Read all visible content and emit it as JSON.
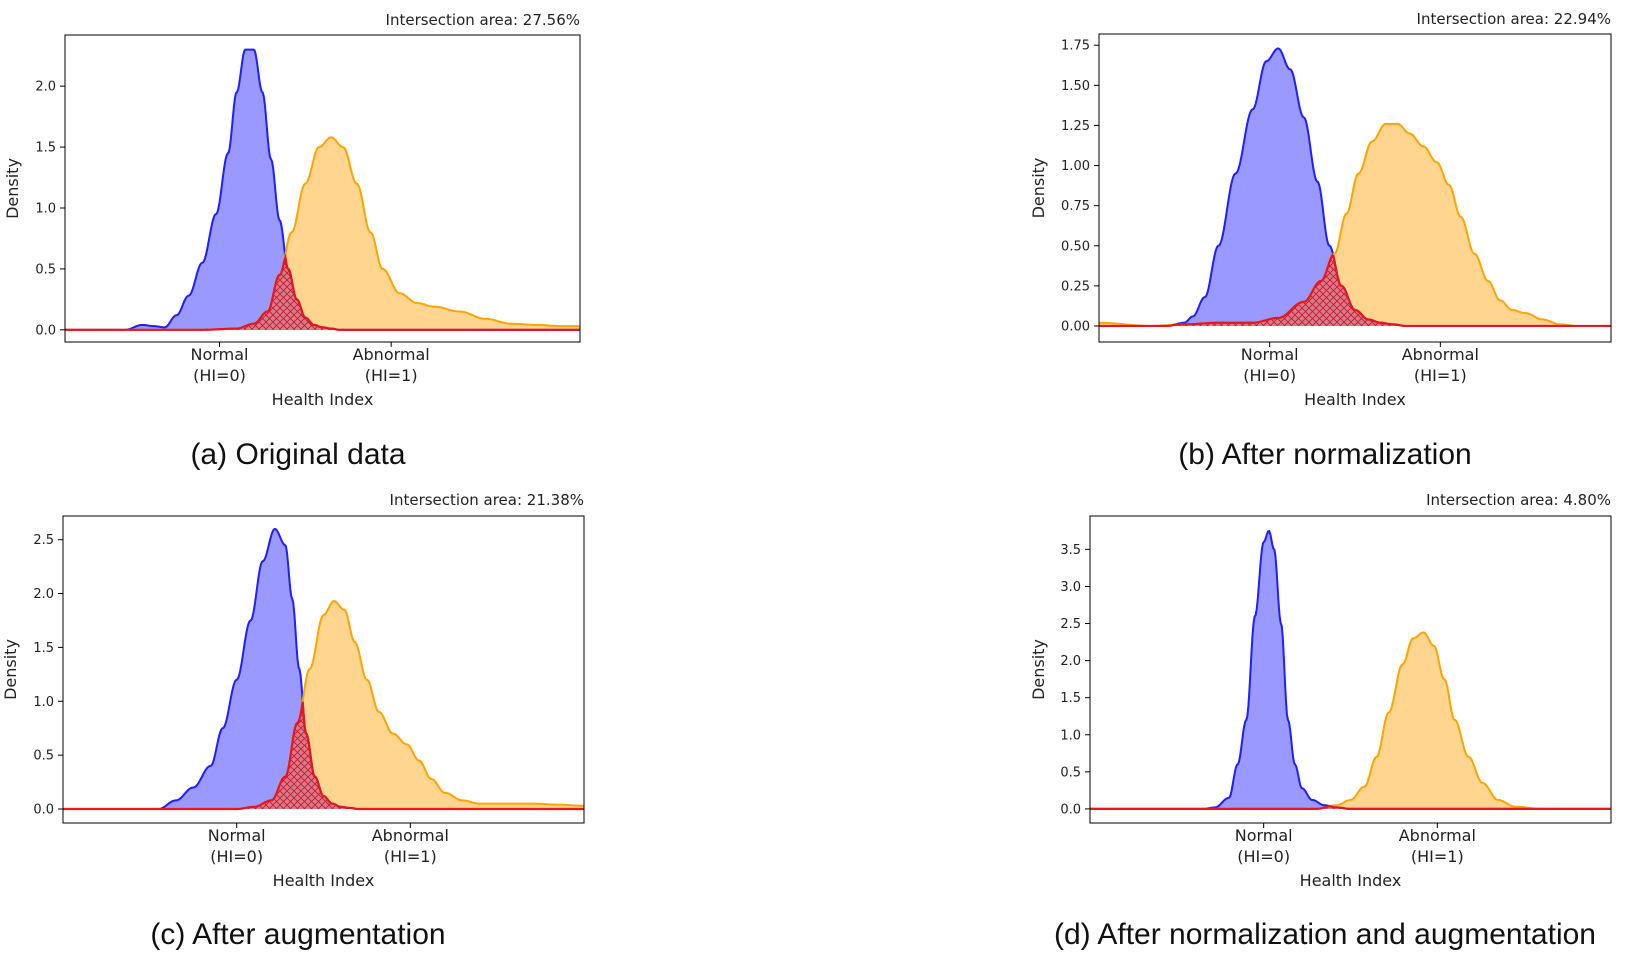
{
  "chart_data": [
    {
      "type": "area",
      "caption": "(a) Original data",
      "annotation": "Intersection area: 27.56%",
      "xlabel": "Health Index",
      "ylabel": "Density",
      "xlim": [
        -0.9,
        2.1
      ],
      "ylim": [
        -0.1,
        2.42
      ],
      "yticks": [
        0.0,
        0.5,
        1.0,
        1.5,
        2.0
      ],
      "xtick_labels": [
        {
          "x": 0,
          "line1": "Normal",
          "line2": "(HI=0)"
        },
        {
          "x": 1,
          "line1": "Abnormal",
          "line2": "(HI=1)"
        }
      ],
      "grid": false,
      "series": [
        {
          "color": "#1f1fff",
          "fill": "#9999ff",
          "x": [
            -0.9,
            -0.55,
            -0.45,
            -0.38,
            -0.32,
            -0.25,
            -0.18,
            -0.1,
            -0.02,
            0.05,
            0.1,
            0.15,
            0.2,
            0.25,
            0.3,
            0.35,
            0.4,
            0.45,
            0.5,
            0.55,
            0.6,
            0.65,
            0.7,
            0.8,
            1.0,
            2.1
          ],
          "y": [
            0,
            0,
            0.04,
            0.03,
            0.02,
            0.12,
            0.28,
            0.55,
            0.95,
            1.45,
            1.95,
            2.3,
            2.3,
            1.95,
            1.4,
            0.9,
            0.5,
            0.25,
            0.1,
            0.04,
            0.02,
            0.01,
            0,
            0,
            0,
            0
          ]
        },
        {
          "color": "#ffa500",
          "fill": "#ffd58f",
          "x": [
            -0.9,
            -0.1,
            0.1,
            0.2,
            0.28,
            0.35,
            0.42,
            0.5,
            0.58,
            0.65,
            0.72,
            0.8,
            0.88,
            0.95,
            1.05,
            1.15,
            1.25,
            1.4,
            1.55,
            1.7,
            1.85,
            2.0,
            2.1
          ],
          "y": [
            0,
            0,
            0.01,
            0.05,
            0.15,
            0.45,
            0.8,
            1.2,
            1.5,
            1.58,
            1.5,
            1.2,
            0.8,
            0.5,
            0.3,
            0.22,
            0.19,
            0.15,
            0.09,
            0.05,
            0.04,
            0.03,
            0.03
          ]
        }
      ]
    },
    {
      "type": "area",
      "caption": "(b) After normalization",
      "annotation": "Intersection area: 22.94%",
      "xlabel": "Health Index",
      "ylabel": "Density",
      "xlim": [
        -1.0,
        2.0
      ],
      "ylim": [
        -0.1,
        1.82
      ],
      "yticks": [
        0.0,
        0.25,
        0.5,
        0.75,
        1.0,
        1.25,
        1.5,
        1.75
      ],
      "xtick_labels": [
        {
          "x": 0,
          "line1": "Normal",
          "line2": "(HI=0)"
        },
        {
          "x": 1,
          "line1": "Abnormal",
          "line2": "(HI=1)"
        }
      ],
      "grid": false,
      "series": [
        {
          "color": "#1f1fff",
          "fill": "#9999ff",
          "x": [
            -1.0,
            -0.6,
            -0.5,
            -0.45,
            -0.38,
            -0.3,
            -0.2,
            -0.1,
            -0.02,
            0.05,
            0.12,
            0.2,
            0.28,
            0.35,
            0.42,
            0.5,
            0.58,
            0.65,
            0.72,
            0.8,
            0.9,
            2.0
          ],
          "y": [
            0,
            0,
            0.02,
            0.06,
            0.18,
            0.5,
            0.95,
            1.35,
            1.65,
            1.73,
            1.6,
            1.3,
            0.9,
            0.5,
            0.25,
            0.1,
            0.04,
            0.02,
            0.01,
            0,
            0,
            0
          ]
        },
        {
          "color": "#ffa500",
          "fill": "#ffd58f",
          "x": [
            -1.0,
            -0.7,
            -0.5,
            -0.3,
            -0.1,
            0.05,
            0.2,
            0.3,
            0.38,
            0.45,
            0.52,
            0.6,
            0.68,
            0.75,
            0.82,
            0.9,
            0.98,
            1.05,
            1.12,
            1.2,
            1.28,
            1.35,
            1.42,
            1.5,
            1.6,
            1.7,
            1.8,
            2.0
          ],
          "y": [
            0.02,
            0,
            0.01,
            0.02,
            0.02,
            0.05,
            0.15,
            0.28,
            0.45,
            0.7,
            0.95,
            1.15,
            1.26,
            1.26,
            1.2,
            1.12,
            1.02,
            0.88,
            0.68,
            0.45,
            0.28,
            0.16,
            0.1,
            0.08,
            0.04,
            0.01,
            0,
            0
          ]
        }
      ]
    },
    {
      "type": "area",
      "caption": "(c) After augmentation",
      "annotation": "Intersection area: 21.38%",
      "xlabel": "Health Index",
      "ylabel": "Density",
      "xlim": [
        -1.0,
        2.0
      ],
      "ylim": [
        -0.13,
        2.72
      ],
      "yticks": [
        0.0,
        0.5,
        1.0,
        1.5,
        2.0,
        2.5
      ],
      "xtick_labels": [
        {
          "x": 0,
          "line1": "Normal",
          "line2": "(HI=0)"
        },
        {
          "x": 1,
          "line1": "Abnormal",
          "line2": "(HI=1)"
        }
      ],
      "grid": false,
      "series": [
        {
          "color": "#1f1fff",
          "fill": "#9999ff",
          "x": [
            -1.0,
            -0.45,
            -0.35,
            -0.25,
            -0.15,
            -0.08,
            0.0,
            0.08,
            0.15,
            0.22,
            0.28,
            0.32,
            0.36,
            0.4,
            0.45,
            0.5,
            0.55,
            0.6,
            0.65,
            0.7,
            0.8,
            2.0
          ],
          "y": [
            0,
            0,
            0.08,
            0.2,
            0.4,
            0.75,
            1.2,
            1.75,
            2.3,
            2.6,
            2.45,
            1.95,
            1.3,
            0.7,
            0.3,
            0.12,
            0.05,
            0.02,
            0.01,
            0,
            0,
            0
          ]
        },
        {
          "color": "#ffa500",
          "fill": "#ffd58f",
          "x": [
            -1.0,
            0.0,
            0.1,
            0.2,
            0.28,
            0.35,
            0.42,
            0.5,
            0.56,
            0.62,
            0.68,
            0.75,
            0.82,
            0.9,
            0.98,
            1.05,
            1.12,
            1.2,
            1.3,
            1.4,
            1.55,
            1.7,
            1.85,
            2.0
          ],
          "y": [
            0,
            0,
            0.02,
            0.08,
            0.3,
            0.8,
            1.3,
            1.8,
            1.93,
            1.85,
            1.55,
            1.2,
            0.9,
            0.7,
            0.6,
            0.45,
            0.28,
            0.15,
            0.08,
            0.05,
            0.05,
            0.05,
            0.04,
            0.03
          ]
        }
      ]
    },
    {
      "type": "area",
      "caption": "(d) After normalization and augmentation",
      "annotation": "Intersection area: 4.80%",
      "xlabel": "Health Index",
      "ylabel": "Density",
      "xlim": [
        -1.0,
        2.0
      ],
      "ylim": [
        -0.19,
        3.95
      ],
      "yticks": [
        0.0,
        0.5,
        1.0,
        1.5,
        2.0,
        2.5,
        3.0,
        3.5
      ],
      "xtick_labels": [
        {
          "x": 0,
          "line1": "Normal",
          "line2": "(HI=0)"
        },
        {
          "x": 1,
          "line1": "Abnormal",
          "line2": "(HI=1)"
        }
      ],
      "grid": false,
      "series": [
        {
          "color": "#1f1fff",
          "fill": "#9999ff",
          "x": [
            -1.0,
            -0.35,
            -0.28,
            -0.2,
            -0.15,
            -0.1,
            -0.05,
            0.0,
            0.03,
            0.06,
            0.1,
            0.14,
            0.18,
            0.22,
            0.28,
            0.35,
            0.42,
            0.5,
            2.0
          ],
          "y": [
            0,
            0,
            0.02,
            0.15,
            0.6,
            1.2,
            2.6,
            3.6,
            3.75,
            3.5,
            2.5,
            1.2,
            0.6,
            0.28,
            0.12,
            0.05,
            0.02,
            0,
            0
          ]
        },
        {
          "color": "#ffa500",
          "fill": "#ffd58f",
          "x": [
            -1.0,
            0.3,
            0.42,
            0.5,
            0.58,
            0.65,
            0.72,
            0.8,
            0.86,
            0.92,
            0.98,
            1.04,
            1.1,
            1.18,
            1.26,
            1.35,
            1.45,
            1.6,
            2.0
          ],
          "y": [
            0,
            0,
            0.05,
            0.12,
            0.3,
            0.7,
            1.3,
            1.95,
            2.3,
            2.38,
            2.2,
            1.75,
            1.2,
            0.7,
            0.35,
            0.12,
            0.03,
            0,
            0
          ]
        }
      ]
    }
  ]
}
